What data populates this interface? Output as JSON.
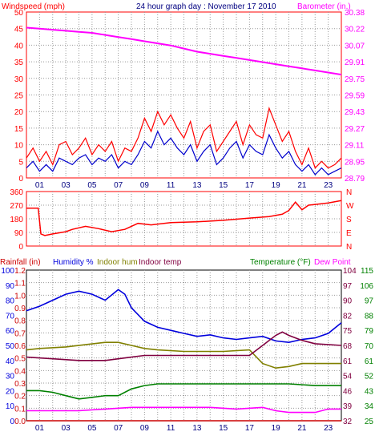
{
  "chart_data": [
    {
      "type": "line",
      "title": "24 hour graph day : November 17 2010",
      "left_axis_label": "Windspeed (mph)",
      "right_axis_label": "Barometer (in.)",
      "left_ticks": [
        "0",
        "5",
        "10",
        "15",
        "20",
        "25",
        "30",
        "35",
        "40",
        "45",
        "50"
      ],
      "right_ticks": [
        "28.79",
        "28.95",
        "29.11",
        "29.27",
        "29.43",
        "29.59",
        "29.75",
        "29.91",
        "30.07",
        "30.22",
        "30.38"
      ],
      "x_ticks": [
        "01",
        "03",
        "05",
        "07",
        "09",
        "11",
        "13",
        "15",
        "17",
        "19",
        "21",
        "23"
      ],
      "ylim_left": [
        0,
        50
      ],
      "ylim_right": [
        28.79,
        30.38
      ],
      "grid": true,
      "colors": {
        "wind_gust": "#ff0000",
        "wind_avg": "#0000cc",
        "barometer": "#ff00ff",
        "frame": "#ff0000"
      },
      "series": [
        {
          "key": "barometer",
          "axis": "right",
          "x": [
            0,
            1,
            2,
            3,
            4,
            5,
            6,
            7,
            8,
            9,
            10,
            11,
            12,
            13,
            14,
            15,
            16,
            17,
            18,
            19,
            20,
            21,
            22,
            23,
            24
          ],
          "y": [
            30.23,
            30.22,
            30.21,
            30.2,
            30.19,
            30.18,
            30.16,
            30.14,
            30.12,
            30.1,
            30.08,
            30.06,
            30.03,
            30.0,
            29.98,
            29.96,
            29.94,
            29.92,
            29.9,
            29.88,
            29.86,
            29.84,
            29.82,
            29.8,
            29.78
          ]
        },
        {
          "key": "wind_gust",
          "axis": "left",
          "x": [
            0,
            0.5,
            1,
            1.5,
            2,
            2.5,
            3,
            3.5,
            4,
            4.5,
            5,
            5.5,
            6,
            6.5,
            7,
            7.5,
            8,
            8.5,
            9,
            9.5,
            10,
            10.5,
            11,
            11.5,
            12,
            12.5,
            13,
            13.5,
            14,
            14.5,
            15,
            15.5,
            16,
            16.5,
            17,
            17.5,
            18,
            18.5,
            19,
            19.5,
            20,
            20.5,
            21,
            21.5,
            22,
            22.5,
            23,
            23.5,
            24
          ],
          "y": [
            6,
            9,
            5,
            8,
            4,
            10,
            11,
            7,
            9,
            12,
            7,
            10,
            8,
            11,
            5,
            9,
            8,
            12,
            18,
            14,
            20,
            16,
            19,
            15,
            12,
            17,
            9,
            14,
            16,
            8,
            11,
            14,
            17,
            10,
            16,
            13,
            12,
            21,
            16,
            11,
            14,
            8,
            4,
            9,
            3,
            5,
            3,
            4,
            6
          ]
        },
        {
          "key": "wind_avg",
          "axis": "left",
          "x": [
            0,
            0.5,
            1,
            1.5,
            2,
            2.5,
            3,
            3.5,
            4,
            4.5,
            5,
            5.5,
            6,
            6.5,
            7,
            7.5,
            8,
            8.5,
            9,
            9.5,
            10,
            10.5,
            11,
            11.5,
            12,
            12.5,
            13,
            13.5,
            14,
            14.5,
            15,
            15.5,
            16,
            16.5,
            17,
            17.5,
            18,
            18.5,
            19,
            19.5,
            20,
            20.5,
            21,
            21.5,
            22,
            22.5,
            23,
            23.5,
            24
          ],
          "y": [
            3,
            5,
            2,
            4,
            2,
            6,
            5,
            4,
            6,
            7,
            4,
            6,
            5,
            7,
            3,
            5,
            4,
            7,
            11,
            9,
            14,
            10,
            12,
            9,
            7,
            10,
            5,
            8,
            10,
            4,
            6,
            9,
            11,
            6,
            10,
            8,
            7,
            13,
            9,
            6,
            8,
            4,
            2,
            4,
            1,
            3,
            1,
            2,
            3
          ]
        }
      ]
    },
    {
      "type": "line",
      "left_ticks": [
        "0",
        "90",
        "180",
        "270",
        "360"
      ],
      "right_ticks": [
        "N",
        "E",
        "S",
        "W",
        "N"
      ],
      "ylim": [
        0,
        360
      ],
      "grid": true,
      "colors": {
        "direction": "#ff0000",
        "frame": "#ff0000"
      },
      "series": [
        {
          "key": "wind_direction",
          "x": [
            0,
            0.9,
            1.1,
            1.4,
            2,
            3,
            3.5,
            4.5,
            5.5,
            6.5,
            7.5,
            8.5,
            9.5,
            11,
            13,
            15,
            17,
            18.5,
            19.5,
            20,
            20.5,
            21,
            21.5,
            22,
            23,
            24
          ],
          "y": [
            250,
            250,
            80,
            70,
            80,
            95,
            110,
            130,
            115,
            95,
            110,
            150,
            140,
            155,
            160,
            170,
            185,
            195,
            210,
            235,
            290,
            240,
            270,
            275,
            285,
            300
          ]
        }
      ]
    },
    {
      "type": "line",
      "legend": {
        "rainfall": "Rainfall (in)",
        "humidity": "Humidity %",
        "indoor_hum": "Indoor hum",
        "indoor_temp": "Indoor temp",
        "temperature": "Temperature (°F)",
        "dew_point": "Dew Point"
      },
      "rain_ticks": [
        "0.0",
        "0.1",
        "0.2",
        "0.3",
        "0.4",
        "0.5",
        "0.6",
        "0.7",
        "0.8",
        "0.9",
        "1.0",
        "1.1",
        "1.2"
      ],
      "humidity_ticks": [
        "0",
        "10",
        "20",
        "30",
        "40",
        "50",
        "60",
        "70",
        "80",
        "90",
        "100"
      ],
      "temp_ticks_a": [
        "25",
        "34",
        "43",
        "52",
        "61",
        "70",
        "79",
        "88",
        "97",
        "106",
        "115"
      ],
      "temp_ticks_b": [
        "32",
        "39",
        "46",
        "54",
        "61",
        "68",
        "75",
        "82",
        "90",
        "97",
        "104"
      ],
      "ylim_rain": [
        0,
        1.2
      ],
      "ylim_humidity": [
        0,
        100
      ],
      "ylim_temp": [
        25,
        115
      ],
      "grid": true,
      "colors": {
        "rainfall": "#cc0000",
        "humidity": "#0000dd",
        "indoor_hum": "#808000",
        "indoor_temp": "#800040",
        "temperature": "#008000",
        "dew_point": "#ff00ff",
        "frame": "#000000"
      },
      "series": [
        {
          "key": "humidity",
          "axis": "humidity",
          "x": [
            0,
            1,
            2,
            3,
            4,
            5,
            6,
            7,
            7.5,
            8,
            9,
            10,
            11,
            12,
            13,
            14,
            15,
            16,
            17,
            18,
            19,
            20,
            21,
            22,
            23,
            24
          ],
          "y": [
            73,
            76,
            80,
            84,
            86,
            84,
            80,
            87,
            84,
            75,
            66,
            62,
            60,
            58,
            56,
            57,
            55,
            54,
            55,
            56,
            53,
            52,
            54,
            55,
            58,
            65
          ]
        },
        {
          "key": "indoor_hum",
          "axis": "humidity",
          "x": [
            0,
            1,
            3,
            5,
            6,
            7,
            8,
            9,
            10,
            12,
            15,
            17,
            18,
            19,
            20,
            21,
            24
          ],
          "y": [
            47,
            48,
            49,
            51,
            52,
            52,
            50,
            48,
            47,
            46,
            46,
            47,
            38,
            35,
            36,
            38,
            38
          ]
        },
        {
          "key": "indoor_temp",
          "axis": "temp",
          "x": [
            0,
            2,
            4,
            6,
            8,
            9,
            10,
            12,
            14,
            16,
            17,
            18,
            19,
            19.5,
            20,
            21,
            22,
            24
          ],
          "y": [
            63,
            62,
            61,
            61,
            63,
            64,
            64,
            64,
            64,
            64,
            64,
            70,
            76,
            78,
            76,
            73,
            71,
            70
          ]
        },
        {
          "key": "temperature",
          "axis": "temp",
          "x": [
            0,
            1,
            2,
            3,
            4,
            5,
            6,
            7,
            8,
            9,
            10,
            11,
            12,
            14,
            16,
            18,
            20,
            22,
            24
          ],
          "y": [
            43,
            43,
            42,
            40,
            38,
            39,
            40,
            40,
            44,
            46,
            47,
            47,
            47,
            47,
            47,
            47,
            47,
            46,
            46
          ]
        },
        {
          "key": "dew_point",
          "axis": "temp",
          "x": [
            0,
            2,
            4,
            6,
            8,
            10,
            12,
            14,
            16,
            18,
            19,
            20,
            22,
            23,
            24
          ],
          "y": [
            31,
            31,
            31,
            32,
            33,
            33,
            33,
            33,
            32,
            33,
            31,
            30,
            30,
            32,
            32
          ]
        },
        {
          "key": "rainfall",
          "axis": "rain",
          "x": [
            0,
            24
          ],
          "y": [
            0,
            0
          ]
        }
      ]
    }
  ]
}
